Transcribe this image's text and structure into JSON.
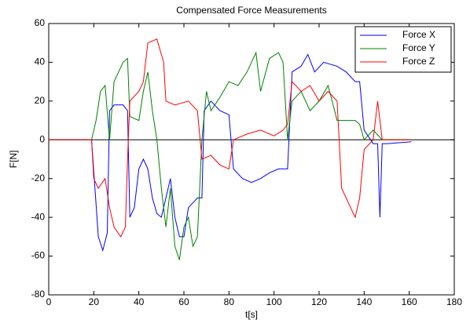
{
  "chart_data": {
    "type": "line",
    "title": "Compensated Force Measurements",
    "x_label": "t[s]",
    "y_label": "F[N]",
    "xlim": [
      0,
      180
    ],
    "xticks": [
      0,
      20,
      40,
      60,
      80,
      100,
      120,
      140,
      160,
      180
    ],
    "ylim": [
      -80,
      60
    ],
    "yticks": [
      -80,
      -60,
      -40,
      -20,
      0,
      20,
      40,
      60
    ],
    "hlines": [
      0
    ],
    "legend": "top-right",
    "series": [
      {
        "name": "Force X",
        "color": "#0000ff",
        "x": [
          0,
          19,
          22,
          24,
          26,
          27,
          29,
          33,
          35,
          36,
          38,
          40,
          42,
          44,
          46,
          48,
          50,
          52,
          54,
          56,
          58,
          60,
          62,
          66,
          68,
          69,
          72,
          76,
          80,
          82,
          86,
          90,
          94,
          98,
          102,
          106,
          108,
          112,
          115,
          118,
          122,
          128,
          132,
          136,
          138,
          140,
          144,
          146,
          147,
          148,
          150,
          161
        ],
        "values": [
          0,
          0,
          -50,
          -57,
          -48,
          15,
          18,
          18,
          15,
          -40,
          -35,
          -15,
          -10,
          -15,
          -30,
          -38,
          -40,
          -30,
          -20,
          -40,
          -50,
          -50,
          -35,
          -30,
          -30,
          15,
          20,
          15,
          13,
          -15,
          -20,
          -22,
          -20,
          -17,
          -15,
          -15,
          35,
          38,
          44,
          35,
          40,
          38,
          35,
          30,
          30,
          5,
          -2,
          -2,
          -40,
          -2,
          -2,
          -1
        ]
      },
      {
        "name": "Force Y",
        "color": "#008000",
        "x": [
          0,
          19,
          21,
          23,
          25,
          27,
          29,
          31,
          33,
          35,
          36,
          40,
          42,
          44,
          46,
          48,
          50,
          52,
          54,
          56,
          58,
          60,
          62,
          64,
          66,
          68,
          70,
          72,
          76,
          80,
          84,
          88,
          92,
          94,
          98,
          102,
          104,
          106,
          108,
          112,
          116,
          120,
          124,
          128,
          132,
          136,
          138,
          140,
          144,
          148,
          161
        ],
        "values": [
          0,
          0,
          10,
          25,
          28,
          0,
          30,
          35,
          40,
          42,
          12,
          10,
          25,
          35,
          15,
          0,
          -25,
          -45,
          -25,
          -55,
          -62,
          -45,
          -40,
          -55,
          -50,
          0,
          25,
          15,
          22,
          30,
          28,
          35,
          45,
          25,
          42,
          45,
          40,
          0,
          20,
          25,
          15,
          20,
          28,
          10,
          10,
          10,
          8,
          0,
          5,
          0,
          0
        ]
      },
      {
        "name": "Force Z",
        "color": "#ff0000",
        "x": [
          0,
          19,
          20,
          22,
          25,
          27,
          29,
          32,
          34,
          35,
          36,
          40,
          42,
          44,
          48,
          51,
          52,
          56,
          62,
          66,
          68,
          72,
          76,
          80,
          82,
          88,
          94,
          100,
          104,
          106,
          108,
          112,
          116,
          120,
          124,
          128,
          130,
          134,
          136,
          138,
          140,
          144,
          146,
          148,
          161
        ],
        "values": [
          0,
          0,
          -20,
          -25,
          -20,
          -35,
          -45,
          -50,
          -45,
          -10,
          20,
          25,
          30,
          50,
          52,
          40,
          20,
          18,
          20,
          15,
          -10,
          -8,
          -13,
          -15,
          0,
          3,
          5,
          2,
          5,
          8,
          30,
          25,
          28,
          20,
          25,
          20,
          -25,
          -35,
          -40,
          -30,
          -5,
          0,
          20,
          0,
          0
        ]
      }
    ]
  }
}
